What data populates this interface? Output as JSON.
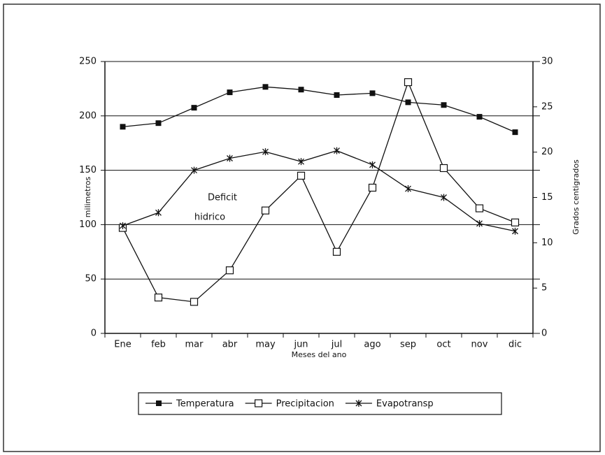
{
  "chart_data": {
    "type": "line",
    "categories": [
      "Ene",
      "feb",
      "mar",
      "abr",
      "may",
      "jun",
      "jul",
      "ago",
      "sep",
      "oct",
      "nov",
      "dic"
    ],
    "series": [
      {
        "name": "Temperatura",
        "color": "#111111",
        "axis": "y2",
        "marker": "filled-square",
        "values": [
          22.8,
          23.2,
          24.9,
          26.6,
          27.2,
          26.9,
          26.3,
          26.5,
          25.5,
          25.2,
          23.9,
          22.2
        ]
      },
      {
        "name": "Precipitacion",
        "color": "#111111",
        "marker": "open-square",
        "values": [
          97,
          33,
          29,
          58,
          113,
          145,
          75,
          134,
          231,
          152,
          115,
          102
        ]
      },
      {
        "name": "Evapotransp",
        "color": "#111111",
        "marker": "star",
        "values": [
          99,
          111,
          150,
          161,
          167,
          158,
          168,
          155,
          133,
          125,
          101,
          94
        ]
      }
    ],
    "xlabel": "Meses del ano",
    "ylabel": "milimetros",
    "y2label": "Grados centigrados",
    "ylim": [
      0,
      250
    ],
    "yticks": [
      0,
      50,
      100,
      150,
      200,
      250
    ],
    "y2lim": [
      0,
      30
    ],
    "y2ticks": [
      0,
      5,
      10,
      15,
      20,
      25,
      30
    ],
    "grid": true,
    "annotations": [
      "Deficit",
      "hidrico"
    ],
    "legend": "bottom"
  }
}
